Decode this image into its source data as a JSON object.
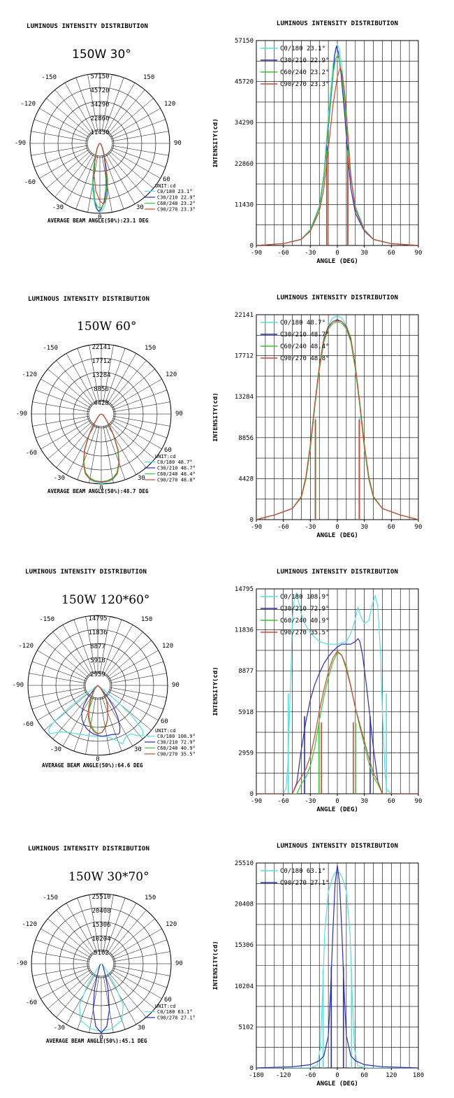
{
  "chart_data": [
    {
      "type": "line",
      "polar": {
        "header": "LUMINOUS INTENSITY DISTRIBUTION",
        "model": "150W 30°",
        "ring_labels": [
          "57150",
          "45720",
          "34290",
          "22860",
          "11430"
        ],
        "angle_labels": [
          "-150",
          "150",
          "-120",
          "120",
          "-90",
          "90",
          "-60",
          "60",
          "-30",
          "30",
          "0"
        ],
        "unit": "UNIT:cd",
        "legend": [
          "C0/180 23.1°",
          "C30/210 22.9°",
          "C60/240 23.2°",
          "C90/270 23.3°"
        ],
        "beam_label": "AVERAGE BEAM ANGLE(50%):23.1 DEG"
      },
      "title": "LUMINOUS INTENSITY DISTRIBUTION",
      "xlabel": "ANGLE (DEG)",
      "ylabel": "INTENSITY(cd)",
      "x_ticks": [
        "-90",
        "-60",
        "-30",
        "0",
        "30",
        "60",
        "90"
      ],
      "y_ticks": [
        "0",
        "11430",
        "22860",
        "34290",
        "45720",
        "57150"
      ],
      "xlim": [
        -90,
        90
      ],
      "ylim": [
        0,
        57150
      ],
      "series": [
        {
          "name": "C0/180 23.1°",
          "color": "#4fe3e3",
          "beam": 23.1,
          "x": [
            -90,
            -60,
            -40,
            -30,
            -20,
            -15,
            -10,
            -5,
            -2,
            0,
            2,
            5,
            10,
            15,
            20,
            30,
            40,
            60,
            90
          ],
          "values": [
            0,
            500,
            1800,
            4500,
            11000,
            20000,
            36000,
            50000,
            55000,
            56000,
            55000,
            50000,
            36000,
            20000,
            11000,
            4500,
            1800,
            500,
            0
          ]
        },
        {
          "name": "C30/210 22.9°",
          "color": "#2a2acc",
          "beam": 22.9,
          "x": [
            -90,
            -60,
            -40,
            -30,
            -20,
            -15,
            -10,
            -5,
            -3,
            -1,
            1,
            4,
            8,
            12,
            15,
            20,
            30,
            40,
            60,
            90
          ],
          "values": [
            0,
            500,
            1700,
            4200,
            10500,
            19000,
            33000,
            47000,
            53000,
            55500,
            54000,
            48000,
            37000,
            24000,
            16000,
            9000,
            4000,
            1700,
            500,
            0
          ]
        },
        {
          "name": "C60/240 23.2°",
          "color": "#2ecc2e",
          "beam": 23.2,
          "x": [
            -90,
            -60,
            -40,
            -30,
            -20,
            -15,
            -10,
            -5,
            -2,
            0,
            2,
            5,
            10,
            15,
            20,
            30,
            40,
            60,
            90
          ],
          "values": [
            0,
            500,
            1700,
            4300,
            10500,
            19000,
            34000,
            47500,
            52000,
            53000,
            52000,
            47500,
            34000,
            19000,
            10500,
            4300,
            1700,
            500,
            0
          ]
        },
        {
          "name": "C90/270 23.3°",
          "color": "#d9442e",
          "beam": 23.3,
          "x": [
            -90,
            -60,
            -40,
            -30,
            -20,
            -15,
            -10,
            -5,
            0,
            3,
            5,
            8,
            12,
            15,
            20,
            30,
            40,
            60,
            90
          ],
          "values": [
            0,
            500,
            1700,
            4000,
            9500,
            16000,
            27000,
            39000,
            47000,
            49500,
            48500,
            43000,
            30000,
            19000,
            10000,
            4200,
            1700,
            500,
            0
          ]
        }
      ]
    },
    {
      "type": "line",
      "polar": {
        "header": "LUMINOUS INTENSITY DISTRIBUTION",
        "model": "150W 60°",
        "ring_labels": [
          "22141",
          "17712",
          "13284",
          "8856",
          "4428"
        ],
        "angle_labels": [
          "-150",
          "150",
          "-120",
          "120",
          "-90",
          "90",
          "-60",
          "60",
          "-30",
          "30",
          "0"
        ],
        "unit": "UNIT:cd",
        "legend": [
          "C0/180 48.7°",
          "C30/210 48.7°",
          "C60/240 48.4°",
          "C90/270 48.8°"
        ],
        "beam_label": "AVERAGE BEAM ANGLE(50%):48.7 DEG"
      },
      "title": "LUMINOUS INTENSITY DISTRIBUTION",
      "xlabel": "ANGLE (DEG)",
      "ylabel": "INTENSITY(cd)",
      "x_ticks": [
        "-90",
        "-60",
        "-30",
        "0",
        "30",
        "60",
        "90"
      ],
      "y_ticks": [
        "0",
        "4428",
        "8856",
        "13284",
        "17712",
        "22141"
      ],
      "xlim": [
        -90,
        90
      ],
      "ylim": [
        0,
        22141
      ],
      "series": [
        {
          "name": "C0/180 48.7°",
          "color": "#4fe3e3",
          "beam": 48.7,
          "x": [
            -90,
            -70,
            -50,
            -40,
            -35,
            -30,
            -25,
            -20,
            -15,
            -10,
            -5,
            0,
            5,
            10,
            15,
            20,
            25,
            30,
            35,
            40,
            50,
            70,
            90
          ],
          "values": [
            0,
            500,
            1200,
            2500,
            4500,
            8000,
            12500,
            16500,
            19500,
            21000,
            21800,
            22000,
            21800,
            21000,
            19500,
            16500,
            12500,
            8000,
            4500,
            2500,
            1200,
            500,
            0
          ]
        },
        {
          "name": "C30/210 48.7°",
          "color": "#2a2acc",
          "beam": 48.7,
          "x": [
            -90,
            -70,
            -50,
            -40,
            -35,
            -30,
            -25,
            -20,
            -15,
            -10,
            -5,
            0,
            5,
            10,
            15,
            20,
            25,
            30,
            35,
            40,
            50,
            70,
            90
          ],
          "values": [
            0,
            500,
            1200,
            2400,
            4400,
            7800,
            12300,
            16300,
            19300,
            20800,
            21400,
            21600,
            21400,
            20800,
            19300,
            16300,
            12300,
            7800,
            4400,
            2400,
            1200,
            500,
            0
          ]
        },
        {
          "name": "C60/240 48.4°",
          "color": "#2ecc2e",
          "beam": 48.4,
          "x": [
            -90,
            -70,
            -50,
            -40,
            -35,
            -30,
            -25,
            -20,
            -15,
            -10,
            -5,
            0,
            5,
            10,
            15,
            20,
            25,
            30,
            35,
            40,
            50,
            70,
            90
          ],
          "values": [
            0,
            500,
            1200,
            2400,
            4300,
            7700,
            12200,
            16200,
            19200,
            20600,
            21200,
            21400,
            21200,
            20600,
            19200,
            16200,
            12200,
            7700,
            4300,
            2400,
            1200,
            500,
            0
          ]
        },
        {
          "name": "C90/270 48.8°",
          "color": "#d9442e",
          "beam": 48.8,
          "x": [
            -90,
            -70,
            -50,
            -40,
            -35,
            -30,
            -25,
            -20,
            -15,
            -10,
            -5,
            0,
            5,
            10,
            15,
            20,
            25,
            30,
            35,
            40,
            50,
            70,
            90
          ],
          "values": [
            0,
            500,
            1200,
            2500,
            4600,
            8100,
            12600,
            16600,
            19600,
            20900,
            21400,
            21500,
            21400,
            20900,
            19600,
            16600,
            12600,
            8100,
            4600,
            2500,
            1200,
            500,
            0
          ]
        }
      ]
    },
    {
      "type": "line",
      "polar": {
        "header": "LUMINOUS INTENSITY DISTRIBUTION",
        "model": "150W 120*60°",
        "ring_labels": [
          "14795",
          "11836",
          "8877",
          "5918",
          "2959"
        ],
        "angle_labels": [
          "-150",
          "150",
          "-120",
          "120",
          "-90",
          "90",
          "-60",
          "60",
          "-30",
          "30",
          "0"
        ],
        "unit": "UNIT:cd",
        "legend": [
          "C0/180 108.9°",
          "C30/210 72.9°",
          "C60/240 40.9°",
          "C90/270 35.5°"
        ],
        "beam_label": "AVERAGE BEAM ANGLE(50%):64.6 DEG"
      },
      "title": "LUMINOUS INTENSITY DISTRIBUTION",
      "xlabel": "ANGLE (DEG)",
      "ylabel": "INTENSITY(cd)",
      "x_ticks": [
        "-90",
        "-60",
        "-30",
        "0",
        "30",
        "60",
        "90"
      ],
      "y_ticks": [
        "0",
        "2959",
        "5918",
        "8877",
        "11836",
        "14795"
      ],
      "xlim": [
        -90,
        90
      ],
      "ylim": [
        0,
        14795
      ],
      "series": [
        {
          "name": "C0/180 108.9°",
          "color": "#4fe3e3",
          "beam": 108.9,
          "x": [
            -90,
            -60,
            -57,
            -55,
            -52,
            -50,
            -48,
            -45,
            -42,
            -38,
            -30,
            -20,
            -10,
            0,
            10,
            15,
            20,
            23,
            26,
            30,
            35,
            38,
            42,
            45,
            48,
            50,
            53,
            55,
            60,
            90
          ],
          "values": [
            0,
            0,
            400,
            2000,
            8000,
            12500,
            14000,
            14500,
            13500,
            12500,
            11600,
            11000,
            10800,
            10800,
            11000,
            11600,
            12600,
            13500,
            12800,
            12300,
            12500,
            13500,
            14300,
            13500,
            10000,
            6000,
            1500,
            300,
            0,
            0
          ]
        },
        {
          "name": "C30/210 72.9°",
          "color": "#2a2acc",
          "beam": 72.9,
          "x": [
            -90,
            -50,
            -45,
            -40,
            -35,
            -30,
            -25,
            -20,
            -15,
            -10,
            -5,
            0,
            5,
            10,
            15,
            20,
            23,
            25,
            28,
            32,
            36,
            40,
            45,
            50,
            90
          ],
          "values": [
            0,
            0,
            800,
            3200,
            5200,
            6800,
            7900,
            8700,
            9400,
            9900,
            10300,
            10600,
            10800,
            10800,
            10800,
            11000,
            11200,
            11000,
            10000,
            8000,
            5700,
            3300,
            900,
            0,
            0
          ]
        },
        {
          "name": "C60/240 40.9°",
          "color": "#2ecc2e",
          "beam": 40.9,
          "x": [
            -90,
            -45,
            -40,
            -35,
            -30,
            -25,
            -20,
            -15,
            -10,
            -5,
            0,
            5,
            10,
            15,
            20,
            25,
            30,
            35,
            40,
            45,
            50,
            90
          ],
          "values": [
            0,
            0,
            700,
            1200,
            2000,
            3400,
            5300,
            7000,
            8400,
            9500,
            10200,
            10000,
            9200,
            7800,
            6200,
            4800,
            3500,
            2200,
            1200,
            700,
            0,
            0
          ]
        },
        {
          "name": "C90/270 35.5°",
          "color": "#d9442e",
          "beam": 35.5,
          "x": [
            -90,
            -50,
            -45,
            -40,
            -35,
            -30,
            -25,
            -20,
            -15,
            -10,
            -5,
            0,
            5,
            10,
            15,
            20,
            25,
            30,
            35,
            40,
            45,
            50,
            90
          ],
          "values": [
            0,
            0,
            700,
            1200,
            1800,
            2700,
            4200,
            6000,
            7500,
            8800,
            9800,
            10300,
            10000,
            9000,
            7700,
            6200,
            5000,
            3800,
            2600,
            1500,
            900,
            0,
            0
          ]
        }
      ]
    },
    {
      "type": "line",
      "polar": {
        "header": "LUMINOUS INTENSITY DISTRIBUTION",
        "model": "150W 30*70°",
        "ring_labels": [
          "25510",
          "20408",
          "15306",
          "10204",
          "5102"
        ],
        "angle_labels": [
          "-150",
          "150",
          "-120",
          "120",
          "-90",
          "90",
          "-60",
          "60",
          "-30",
          "30",
          "0"
        ],
        "unit": "UNIT:cd",
        "legend": [
          "C0/180 63.1°",
          "C90/270 27.1°"
        ],
        "beam_label": "AVERAGE BEAM ANGLE(50%):45.1 DEG"
      },
      "title": "LUMINOUS INTENSITY DISTRIBUTION",
      "xlabel": "ANGLE (DEG)",
      "ylabel": "INTENSITY(cd)",
      "x_ticks": [
        "-180",
        "-120",
        "-60",
        "0",
        "60",
        "120",
        "180"
      ],
      "y_ticks": [
        "0",
        "5102",
        "10204",
        "15306",
        "20408",
        "25510"
      ],
      "xlim": [
        -180,
        180
      ],
      "ylim": [
        0,
        25510
      ],
      "series": [
        {
          "name": "C0/180 63.1°",
          "color": "#4fe3e3",
          "beam": 63.1,
          "x": [
            -180,
            -60,
            -45,
            -38,
            -33,
            -28,
            -20,
            -10,
            -5,
            0,
            5,
            10,
            20,
            28,
            33,
            38,
            45,
            60,
            180
          ],
          "values": [
            0,
            0,
            300,
            2500,
            9000,
            17000,
            22000,
            23800,
            24300,
            24500,
            24300,
            23800,
            22000,
            17000,
            9000,
            2500,
            300,
            0,
            0
          ]
        },
        {
          "name": "C90/270 27.1°",
          "color": "#2a2acc",
          "beam": 27.1,
          "x": [
            -180,
            -100,
            -60,
            -40,
            -30,
            -20,
            -15,
            -10,
            -5,
            0,
            5,
            10,
            15,
            20,
            30,
            40,
            60,
            100,
            180
          ],
          "values": [
            0,
            150,
            400,
            900,
            1500,
            4000,
            9500,
            17000,
            23000,
            25200,
            23000,
            17000,
            9500,
            4000,
            1500,
            900,
            400,
            150,
            0
          ]
        }
      ]
    }
  ]
}
